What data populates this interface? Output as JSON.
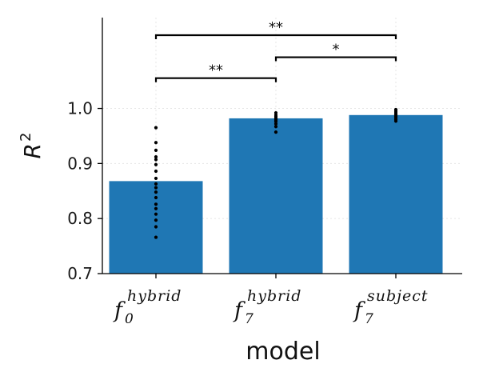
{
  "chart_data": {
    "type": "bar",
    "xlabel": "model",
    "ylabel": {
      "main": "R",
      "sup": "2"
    },
    "ylim": [
      0.7,
      1.165
    ],
    "yticks": [
      0.7,
      0.8,
      0.9,
      1.0
    ],
    "ytick_labels": [
      "0.7",
      "0.8",
      "0.9",
      "1.0"
    ],
    "grid": true,
    "bar_color": "#1f77b4",
    "point_color": "#000000",
    "categories": [
      {
        "main": "f",
        "sub": "0",
        "sup": "hybrid"
      },
      {
        "main": "f",
        "sub": "7",
        "sup": "hybrid"
      },
      {
        "main": "f",
        "sub": "7",
        "sup": "subject"
      }
    ],
    "values": [
      0.868,
      0.982,
      0.988
    ],
    "points": [
      [
        0.965,
        0.938,
        0.924,
        0.912,
        0.907,
        0.898,
        0.886,
        0.873,
        0.863,
        0.856,
        0.848,
        0.838,
        0.826,
        0.818,
        0.808,
        0.797,
        0.785,
        0.766
      ],
      [
        0.992,
        0.988,
        0.985,
        0.982,
        0.979,
        0.976,
        0.972,
        0.967,
        0.957
      ],
      [
        0.998,
        0.995,
        0.992,
        0.989,
        0.986,
        0.983,
        0.98,
        0.977
      ]
    ],
    "significance": [
      {
        "from": 0,
        "to": 2,
        "label": "**",
        "y": 1.133
      },
      {
        "from": 1,
        "to": 2,
        "label": "*",
        "y": 1.093
      },
      {
        "from": 0,
        "to": 1,
        "label": "**",
        "y": 1.055
      }
    ]
  }
}
